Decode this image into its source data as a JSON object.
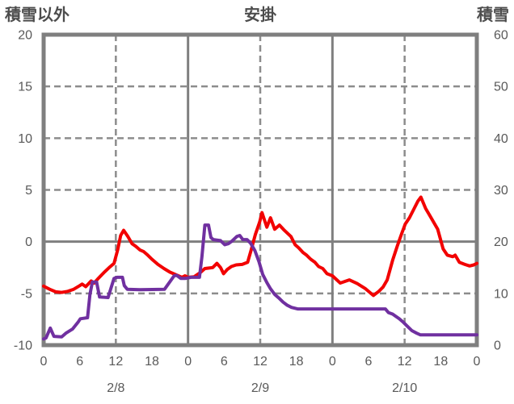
{
  "chart_data": {
    "type": "line",
    "title": "安掛",
    "left_axis": {
      "label": "積雪以外",
      "min": -10,
      "max": 20,
      "ticks": [
        20,
        15,
        10,
        5,
        0,
        -5,
        -10
      ]
    },
    "right_axis": {
      "label": "積雪",
      "min": 0,
      "max": 60,
      "ticks": [
        60,
        50,
        40,
        30,
        20,
        10,
        0
      ]
    },
    "x_axis": {
      "min_hour": 0,
      "max_hour": 72,
      "hour_ticks": [
        {
          "hour": 0,
          "label": "0"
        },
        {
          "hour": 6,
          "label": "6"
        },
        {
          "hour": 12,
          "label": "12"
        },
        {
          "hour": 18,
          "label": "18"
        },
        {
          "hour": 24,
          "label": "0"
        },
        {
          "hour": 30,
          "label": "6"
        },
        {
          "hour": 36,
          "label": "12"
        },
        {
          "hour": 42,
          "label": "18"
        },
        {
          "hour": 48,
          "label": "0"
        },
        {
          "hour": 54,
          "label": "6"
        },
        {
          "hour": 60,
          "label": "12"
        },
        {
          "hour": 66,
          "label": "18"
        },
        {
          "hour": 72,
          "label": "0"
        }
      ],
      "date_labels": [
        {
          "hour": 12,
          "label": "2/8"
        },
        {
          "hour": 36,
          "label": "2/9"
        },
        {
          "hour": 60,
          "label": "2/10"
        }
      ]
    },
    "grid": {
      "h_dashed_left_values": [
        15,
        10,
        5,
        -5
      ],
      "h_solid_left_values": [
        0
      ],
      "v_dashed_hours": [
        12,
        36,
        60
      ],
      "v_solid_hours": [
        24,
        48
      ]
    },
    "colors": {
      "temperature": "#f20000",
      "snow": "#7030a0",
      "border": "#7f7f7f",
      "grid": "#8c8c8c",
      "tick_text": "#595959",
      "title_text": "#4d4d4d"
    },
    "series": [
      {
        "name": "temperature_non_snow",
        "axis": "left",
        "color_key": "temperature",
        "points": [
          [
            0,
            -4.3
          ],
          [
            1,
            -4.6
          ],
          [
            2,
            -4.85
          ],
          [
            3,
            -4.9
          ],
          [
            4,
            -4.8
          ],
          [
            5,
            -4.6
          ],
          [
            6,
            -4.25
          ],
          [
            6.4,
            -4.1
          ],
          [
            7,
            -4.35
          ],
          [
            7.9,
            -3.8
          ],
          [
            8.4,
            -4.0
          ],
          [
            9,
            -3.6
          ],
          [
            10,
            -3.0
          ],
          [
            11,
            -2.45
          ],
          [
            11.7,
            -2.1
          ],
          [
            12.3,
            -0.8
          ],
          [
            12.8,
            0.6
          ],
          [
            13.3,
            1.1
          ],
          [
            14,
            0.5
          ],
          [
            14.7,
            -0.2
          ],
          [
            15.3,
            -0.45
          ],
          [
            16,
            -0.8
          ],
          [
            16.6,
            -0.95
          ],
          [
            17.3,
            -1.3
          ],
          [
            18,
            -1.7
          ],
          [
            19,
            -2.2
          ],
          [
            20,
            -2.6
          ],
          [
            21,
            -2.95
          ],
          [
            22,
            -3.2
          ],
          [
            23,
            -3.45
          ],
          [
            23.5,
            -3.3
          ],
          [
            24,
            -3.45
          ],
          [
            25,
            -3.4
          ],
          [
            26,
            -3.0
          ],
          [
            26.8,
            -2.6
          ],
          [
            27.5,
            -2.55
          ],
          [
            28.1,
            -2.5
          ],
          [
            28.8,
            -2.1
          ],
          [
            29.4,
            -2.5
          ],
          [
            29.9,
            -3.1
          ],
          [
            30.5,
            -2.7
          ],
          [
            31.2,
            -2.4
          ],
          [
            32,
            -2.25
          ],
          [
            33,
            -2.2
          ],
          [
            33.9,
            -2.0
          ],
          [
            34.5,
            -0.8
          ],
          [
            35.2,
            0.7
          ],
          [
            35.9,
            1.9
          ],
          [
            36.3,
            2.8
          ],
          [
            37.1,
            1.4
          ],
          [
            37.7,
            2.3
          ],
          [
            38.4,
            1.2
          ],
          [
            39.2,
            1.6
          ],
          [
            40,
            1.1
          ],
          [
            41.1,
            0.5
          ],
          [
            41.8,
            -0.3
          ],
          [
            42.4,
            -0.6
          ],
          [
            43.1,
            -1.05
          ],
          [
            43.7,
            -1.3
          ],
          [
            44.4,
            -1.7
          ],
          [
            45.1,
            -2.0
          ],
          [
            45.7,
            -2.4
          ],
          [
            46.4,
            -2.6
          ],
          [
            47.1,
            -3.1
          ],
          [
            48,
            -3.3
          ],
          [
            49.3,
            -4.0
          ],
          [
            50.8,
            -3.7
          ],
          [
            52.1,
            -4.05
          ],
          [
            53.5,
            -4.55
          ],
          [
            54.8,
            -5.2
          ],
          [
            55.7,
            -4.8
          ],
          [
            56.4,
            -4.4
          ],
          [
            57.1,
            -3.7
          ],
          [
            58,
            -1.8
          ],
          [
            58.8,
            -0.4
          ],
          [
            59.5,
            0.75
          ],
          [
            60.1,
            1.7
          ],
          [
            60.8,
            2.3
          ],
          [
            61.5,
            3.1
          ],
          [
            62.2,
            3.9
          ],
          [
            62.7,
            4.3
          ],
          [
            63.5,
            3.2
          ],
          [
            64.1,
            2.6
          ],
          [
            64.8,
            1.9
          ],
          [
            65.5,
            1.2
          ],
          [
            66.4,
            -0.7
          ],
          [
            67.1,
            -1.3
          ],
          [
            68,
            -1.45
          ],
          [
            68.4,
            -1.3
          ],
          [
            69.1,
            -2.0
          ],
          [
            70,
            -2.2
          ],
          [
            70.8,
            -2.35
          ],
          [
            71.5,
            -2.25
          ],
          [
            72,
            -2.1
          ]
        ]
      },
      {
        "name": "snow_depth",
        "axis": "right",
        "color_key": "snow",
        "points": [
          [
            0,
            1.2
          ],
          [
            0.4,
            1.4
          ],
          [
            1.1,
            3.3
          ],
          [
            1.7,
            1.7
          ],
          [
            3,
            1.6
          ],
          [
            3.7,
            2.3
          ],
          [
            4.8,
            3.1
          ],
          [
            5.7,
            4.4
          ],
          [
            6.1,
            5.1
          ],
          [
            7.3,
            5.3
          ],
          [
            7.7,
            9.8
          ],
          [
            8.1,
            12.2
          ],
          [
            8.8,
            12.2
          ],
          [
            9.3,
            9.3
          ],
          [
            10.7,
            9.2
          ],
          [
            11.7,
            12.9
          ],
          [
            12.2,
            13.1
          ],
          [
            13.1,
            13.1
          ],
          [
            13.4,
            11.5
          ],
          [
            13.9,
            10.8
          ],
          [
            16,
            10.7
          ],
          [
            20.1,
            10.8
          ],
          [
            21.7,
            13.4
          ],
          [
            22.1,
            13.5
          ],
          [
            22.8,
            12.9
          ],
          [
            23.6,
            12.9
          ],
          [
            24.5,
            13.1
          ],
          [
            25.9,
            13.1
          ],
          [
            26.3,
            17.0
          ],
          [
            26.8,
            23.2
          ],
          [
            27.4,
            23.2
          ],
          [
            27.8,
            20.8
          ],
          [
            28.2,
            20.4
          ],
          [
            29.4,
            20.2
          ],
          [
            30.1,
            19.4
          ],
          [
            30.7,
            19.6
          ],
          [
            31.3,
            20.1
          ],
          [
            32.1,
            21.0
          ],
          [
            32.6,
            21.2
          ],
          [
            33.1,
            20.4
          ],
          [
            33.8,
            20.4
          ],
          [
            34.4,
            19.7
          ],
          [
            35.1,
            18.3
          ],
          [
            35.8,
            16.1
          ],
          [
            36.4,
            13.7
          ],
          [
            37.1,
            12.1
          ],
          [
            37.7,
            10.9
          ],
          [
            38.4,
            9.8
          ],
          [
            39.2,
            9.0
          ],
          [
            39.8,
            8.3
          ],
          [
            40.5,
            7.7
          ],
          [
            41.2,
            7.3
          ],
          [
            42.2,
            7.0
          ],
          [
            48,
            7.0
          ],
          [
            56.8,
            7.0
          ],
          [
            57.3,
            6.3
          ],
          [
            58,
            6.0
          ],
          [
            58.5,
            5.6
          ],
          [
            59.1,
            5.1
          ],
          [
            59.8,
            4.4
          ],
          [
            60.5,
            3.6
          ],
          [
            61.2,
            2.8
          ],
          [
            62,
            2.3
          ],
          [
            62.6,
            2.0
          ],
          [
            72,
            2.0
          ]
        ]
      }
    ]
  }
}
